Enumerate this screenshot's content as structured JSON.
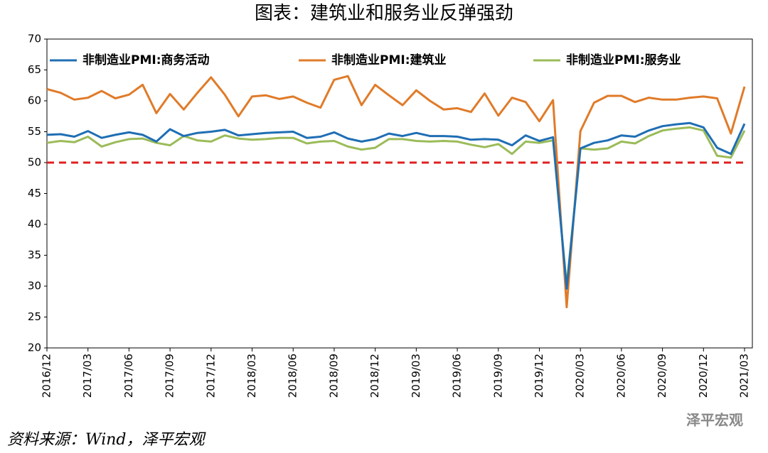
{
  "chart_data": {
    "type": "line",
    "title": "图表：建筑业和服务业反弹强劲",
    "source": "资料来源：Wind，泽平宏观",
    "watermark": "泽平宏观",
    "categories": [
      "2016/12",
      null,
      null,
      "2017/03",
      null,
      null,
      "2017/06",
      null,
      null,
      "2017/09",
      null,
      null,
      "2017/12",
      null,
      null,
      "2018/03",
      null,
      null,
      "2018/06",
      null,
      null,
      "2018/09",
      null,
      null,
      "2018/12",
      null,
      null,
      "2019/03",
      null,
      null,
      "2019/06",
      null,
      null,
      "2019/09",
      null,
      null,
      "2019/12",
      null,
      null,
      "2020/03",
      null,
      null,
      "2020/06",
      null,
      null,
      "2020/09",
      null,
      null,
      "2020/12",
      null,
      null,
      "2021/03"
    ],
    "series": [
      {
        "name": "非制造业PMI:商务活动",
        "color": "#1f6eb4",
        "values": [
          54.5,
          54.6,
          54.2,
          55.1,
          54.0,
          54.5,
          54.9,
          54.5,
          53.4,
          55.4,
          54.3,
          54.8,
          55.0,
          55.3,
          54.4,
          54.6,
          54.8,
          54.9,
          55.0,
          54.0,
          54.2,
          54.9,
          53.9,
          53.4,
          53.8,
          54.7,
          54.3,
          54.8,
          54.3,
          54.3,
          54.2,
          53.7,
          53.8,
          53.7,
          52.8,
          54.4,
          53.5,
          54.1,
          29.6,
          52.3,
          53.2,
          53.6,
          54.4,
          54.2,
          55.2,
          55.9,
          56.2,
          56.4,
          55.7,
          52.4,
          51.4,
          56.3
        ]
      },
      {
        "name": "非制造业PMI:建筑业",
        "color": "#e07b29",
        "values": [
          61.9,
          61.3,
          60.2,
          60.5,
          61.6,
          60.4,
          61.0,
          62.6,
          58.0,
          61.1,
          58.6,
          61.3,
          63.8,
          61.0,
          57.5,
          60.7,
          60.9,
          60.3,
          60.7,
          59.7,
          58.9,
          63.4,
          64.0,
          59.3,
          62.6,
          60.9,
          59.3,
          61.7,
          60.0,
          58.6,
          58.8,
          58.2,
          61.2,
          57.6,
          60.5,
          59.8,
          56.7,
          60.1,
          26.6,
          55.1,
          59.7,
          60.8,
          60.8,
          59.8,
          60.5,
          60.2,
          60.2,
          60.5,
          60.7,
          60.4,
          54.7,
          62.3
        ]
      },
      {
        "name": "非制造业PMI:服务业",
        "color": "#9bbb59",
        "values": [
          53.2,
          53.5,
          53.3,
          54.2,
          52.6,
          53.3,
          53.8,
          53.9,
          53.2,
          52.8,
          54.3,
          53.6,
          53.4,
          54.4,
          53.9,
          53.7,
          53.8,
          54.0,
          54.0,
          53.1,
          53.4,
          53.5,
          52.6,
          52.1,
          52.4,
          53.8,
          53.8,
          53.5,
          53.4,
          53.5,
          53.4,
          52.9,
          52.5,
          53.0,
          51.4,
          53.4,
          53.2,
          53.6,
          30.1,
          52.3,
          52.1,
          52.3,
          53.4,
          53.1,
          54.3,
          55.2,
          55.5,
          55.7,
          55.2,
          51.1,
          50.8,
          55.2
        ]
      }
    ],
    "reference_line": {
      "value": 50,
      "color": "#e02020"
    },
    "ylim": [
      20,
      70
    ],
    "yticks": [
      20,
      25,
      30,
      35,
      40,
      45,
      50,
      55,
      60,
      65,
      70
    ]
  }
}
